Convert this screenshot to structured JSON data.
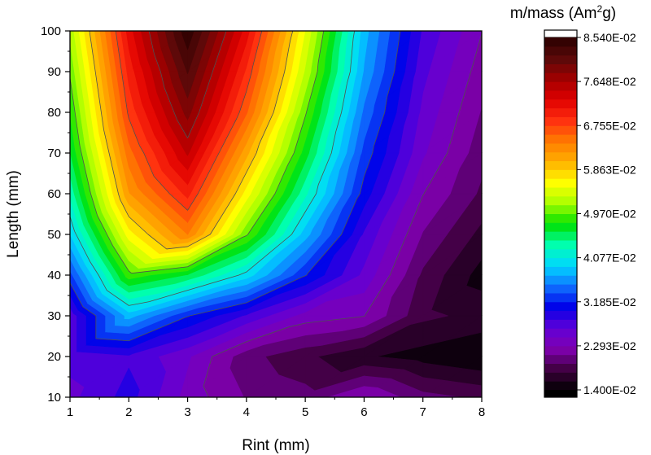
{
  "chart_data": {
    "type": "heatmap",
    "subtype": "filled-contour",
    "xlabel": "Rint (mm)",
    "ylabel": "Length (mm)",
    "colorbar_title_pre": "m/mass (Am",
    "colorbar_title_sup": "2",
    "colorbar_title_post": "g)",
    "x": [
      1,
      2,
      3,
      4,
      5,
      6,
      7,
      8
    ],
    "y": [
      10,
      20,
      30,
      40,
      50,
      60,
      70,
      80,
      90,
      100
    ],
    "xlim": [
      1,
      8
    ],
    "ylim": [
      10,
      100
    ],
    "xticks": [
      "1",
      "2",
      "3",
      "4",
      "5",
      "6",
      "7",
      "8"
    ],
    "yticks": [
      "10",
      "20",
      "30",
      "40",
      "50",
      "60",
      "70",
      "80",
      "90",
      "100"
    ],
    "z": [
      [
        0.026,
        0.029,
        0.024,
        0.021,
        0.02,
        0.023,
        0.02,
        0.019
      ],
      [
        0.027,
        0.028,
        0.025,
        0.02,
        0.018,
        0.016,
        0.015,
        0.014
      ],
      [
        0.027,
        0.038,
        0.032,
        0.028,
        0.024,
        0.023,
        0.018,
        0.017
      ],
      [
        0.033,
        0.049,
        0.046,
        0.04,
        0.032,
        0.026,
        0.019,
        0.015
      ],
      [
        0.039,
        0.056,
        0.064,
        0.05,
        0.038,
        0.028,
        0.021,
        0.017
      ],
      [
        0.043,
        0.062,
        0.07,
        0.056,
        0.043,
        0.031,
        0.023,
        0.019
      ],
      [
        0.046,
        0.065,
        0.075,
        0.061,
        0.047,
        0.033,
        0.025,
        0.02
      ],
      [
        0.048,
        0.068,
        0.079,
        0.066,
        0.05,
        0.035,
        0.026,
        0.021
      ],
      [
        0.05,
        0.07,
        0.082,
        0.069,
        0.053,
        0.037,
        0.027,
        0.022
      ],
      [
        0.052,
        0.072,
        0.085,
        0.072,
        0.055,
        0.038,
        0.028,
        0.023
      ]
    ],
    "levels": {
      "min": 0.014,
      "max": 0.0854,
      "count": 40,
      "line_every": 5
    },
    "colorbar_ticks": [
      "8.540E-02",
      "7.648E-02",
      "6.755E-02",
      "5.863E-02",
      "4.970E-02",
      "4.077E-02",
      "3.185E-02",
      "2.293E-02",
      "1.400E-02"
    ],
    "colormap": [
      "#2a0000",
      "#5a0a0a",
      "#a00000",
      "#e00000",
      "#ff3010",
      "#ff7a00",
      "#ffb000",
      "#ffff00",
      "#a8ff00",
      "#00e000",
      "#00ffb0",
      "#00d8ff",
      "#1070ff",
      "#0000e8",
      "#6000d8",
      "#8000b0",
      "#400040",
      "#000000"
    ],
    "colors": {
      "contour_line": "#505050",
      "above_max": "#ffffff",
      "below_min": "#000000"
    },
    "legend_placement": "right (colorbar)",
    "grid": false
  }
}
